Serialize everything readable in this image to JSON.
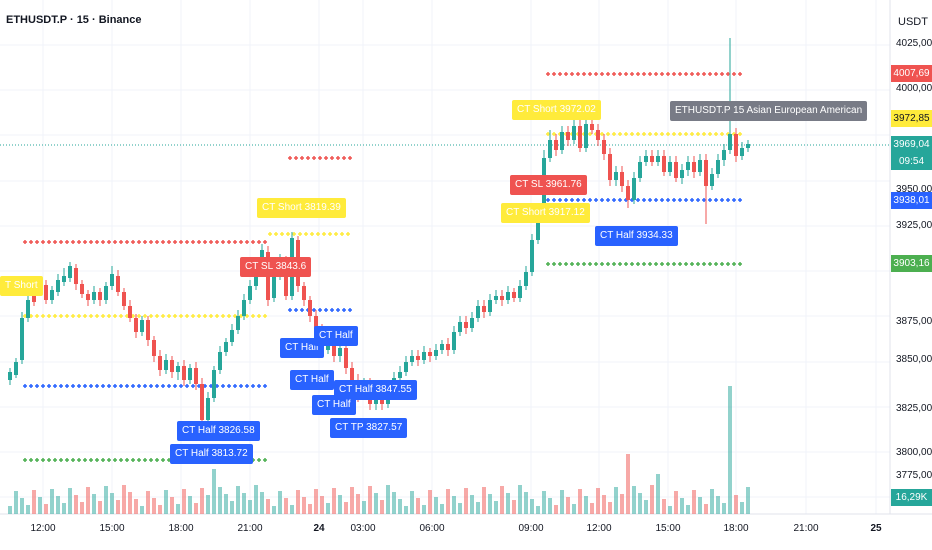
{
  "header": {
    "title": "ETHUSDT.P · 15 · Binance",
    "currency": "USDT"
  },
  "price_axis": {
    "ticks": [
      "4025,00",
      "4000,00",
      "3950,00",
      "3925,00",
      "3875,00",
      "3850,00",
      "3825,00",
      "3800,00",
      "3775,00"
    ],
    "badges": [
      {
        "text": "4007,69",
        "color": "#ef5350",
        "text_color": "#ffffff"
      },
      {
        "text": "3972,85",
        "color": "#ffeb3b",
        "text_color": "#131722"
      },
      {
        "text": "3969,04",
        "color": "#26a69a",
        "text_color": "#ffffff"
      },
      {
        "text": "09:54",
        "color": "#26a69a",
        "text_color": "#ffffff"
      },
      {
        "text": "3938,01",
        "color": "#2962ff",
        "text_color": "#ffffff"
      },
      {
        "text": "3903,16",
        "color": "#4caf50",
        "text_color": "#ffffff"
      },
      {
        "text": "16,29K",
        "color": "#26a69a",
        "text_color": "#ffffff"
      }
    ]
  },
  "time_axis": {
    "ticks": [
      "12:00",
      "15:00",
      "18:00",
      "21:00",
      "24",
      "03:00",
      "06:00",
      "09:00",
      "12:00",
      "15:00",
      "18:00",
      "21:00",
      "25"
    ]
  },
  "tags": [
    {
      "id": "ct-short-a",
      "text": "T Short",
      "color": "#ffeb3b",
      "text_color": "#ffffff"
    },
    {
      "id": "ct-short-b",
      "text": "CT Short 3819.39",
      "color": "#ffeb3b",
      "text_color": "#ffffff"
    },
    {
      "id": "ct-sl-a",
      "text": "CT SL 3843.6",
      "color": "#ef5350",
      "text_color": "#ffffff"
    },
    {
      "id": "ct-half-a",
      "text": "CT Half 3826.58",
      "color": "#2962ff",
      "text_color": "#ffffff"
    },
    {
      "id": "ct-half-b",
      "text": "CT Half 3813.72",
      "color": "#2962ff",
      "text_color": "#ffffff"
    },
    {
      "id": "ct-half-c",
      "text": "CT Half",
      "color": "#2962ff",
      "text_color": "#ffffff"
    },
    {
      "id": "ct-half-d",
      "text": "CT Half",
      "color": "#2962ff",
      "text_color": "#ffffff"
    },
    {
      "id": "ct-half-e",
      "text": "CT Half",
      "color": "#2962ff",
      "text_color": "#ffffff"
    },
    {
      "id": "ct-half-f",
      "text": "CT Half 3847.55",
      "color": "#2962ff",
      "text_color": "#ffffff"
    },
    {
      "id": "ct-half-g",
      "text": "CT Half",
      "color": "#2962ff",
      "text_color": "#ffffff"
    },
    {
      "id": "ct-tp-a",
      "text": "CT TP 3827.57",
      "color": "#2962ff",
      "text_color": "#ffffff"
    },
    {
      "id": "ct-short-c",
      "text": "CT Short 3972.02",
      "color": "#ffeb3b",
      "text_color": "#ffffff"
    },
    {
      "id": "ct-sl-b",
      "text": "CT SL 3961.76",
      "color": "#ef5350",
      "text_color": "#ffffff"
    },
    {
      "id": "ct-short-d",
      "text": "CT Short 3917.12",
      "color": "#ffeb3b",
      "text_color": "#ffffff"
    },
    {
      "id": "ct-half-h",
      "text": "CT Half 3934.33",
      "color": "#2962ff",
      "text_color": "#ffffff"
    },
    {
      "id": "session-tag",
      "text": "ETHUSDT.P 15 Asian European American",
      "color": "#787b86",
      "text_color": "#ffffff"
    }
  ],
  "colors": {
    "up": "#26a69a",
    "down": "#ef5350",
    "grid": "#f0f3fa"
  }
}
